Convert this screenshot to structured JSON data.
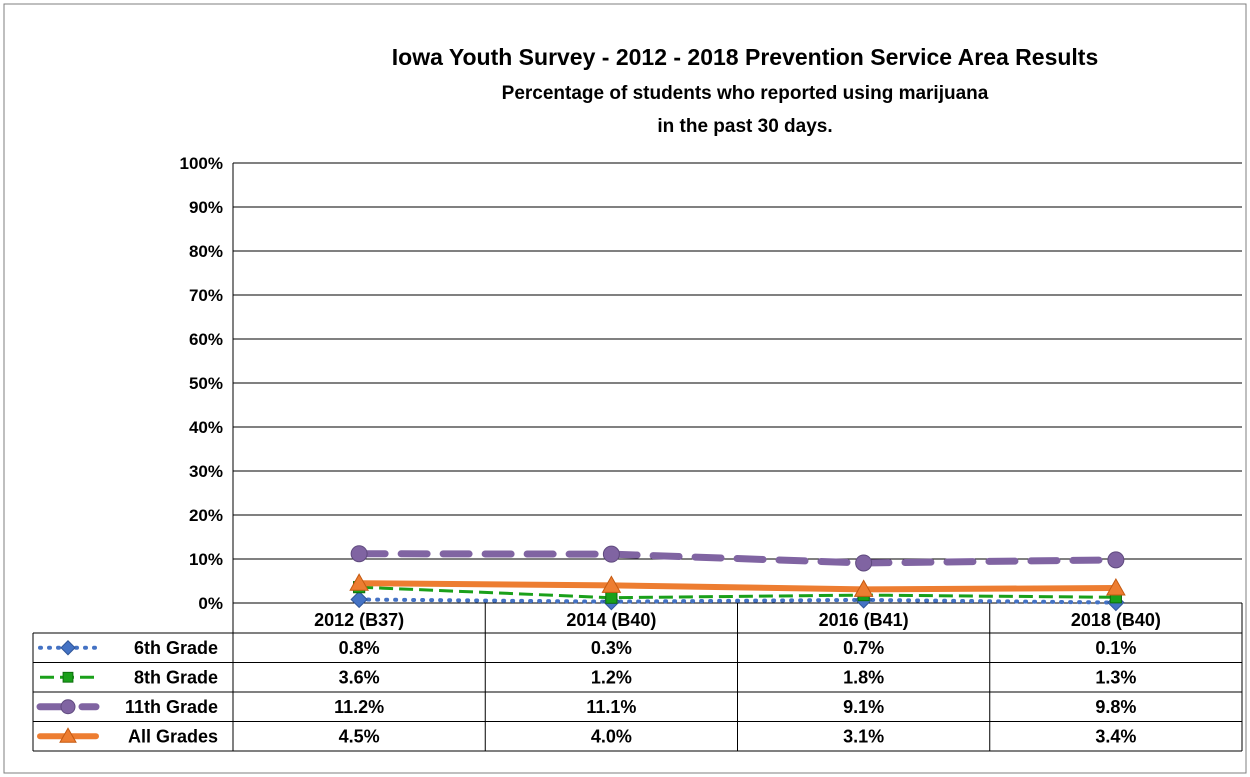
{
  "chart_data": {
    "type": "line",
    "title": "Iowa Youth Survey - 2012 - 2018 Prevention Service Area Results",
    "subtitle_lines": [
      "Percentage of students who reported using marijuana",
      "in the past 30 days."
    ],
    "categories": [
      "2012 (B37)",
      "2014 (B40)",
      "2016 (B41)",
      "2018 (B40)"
    ],
    "y_ticks": [
      "0%",
      "10%",
      "20%",
      "30%",
      "40%",
      "50%",
      "60%",
      "70%",
      "80%",
      "90%",
      "100%"
    ],
    "ylim": [
      0,
      100
    ],
    "grid": true,
    "legend": "data-table",
    "series": [
      {
        "name": "6th Grade",
        "values": [
          0.8,
          0.3,
          0.7,
          0.1
        ],
        "labels": [
          "0.8%",
          "0.3%",
          "0.7%",
          "0.1%"
        ],
        "color": "#4472c4",
        "marker": "diamond",
        "line": "dotted"
      },
      {
        "name": "8th Grade",
        "values": [
          3.6,
          1.2,
          1.8,
          1.3
        ],
        "labels": [
          "3.6%",
          "1.2%",
          "1.8%",
          "1.3%"
        ],
        "color": "#1aa01a",
        "marker": "square",
        "line": "dashed"
      },
      {
        "name": "11th Grade",
        "values": [
          11.2,
          11.1,
          9.1,
          9.8
        ],
        "labels": [
          "11.2%",
          "11.1%",
          "9.1%",
          "9.8%"
        ],
        "color": "#8064a2",
        "marker": "circle",
        "line": "long-dash"
      },
      {
        "name": "All Grades",
        "values": [
          4.5,
          4.0,
          3.1,
          3.4
        ],
        "labels": [
          "4.5%",
          "4.0%",
          "3.1%",
          "3.4%"
        ],
        "color": "#ed7d31",
        "marker": "triangle",
        "line": "solid"
      }
    ]
  }
}
